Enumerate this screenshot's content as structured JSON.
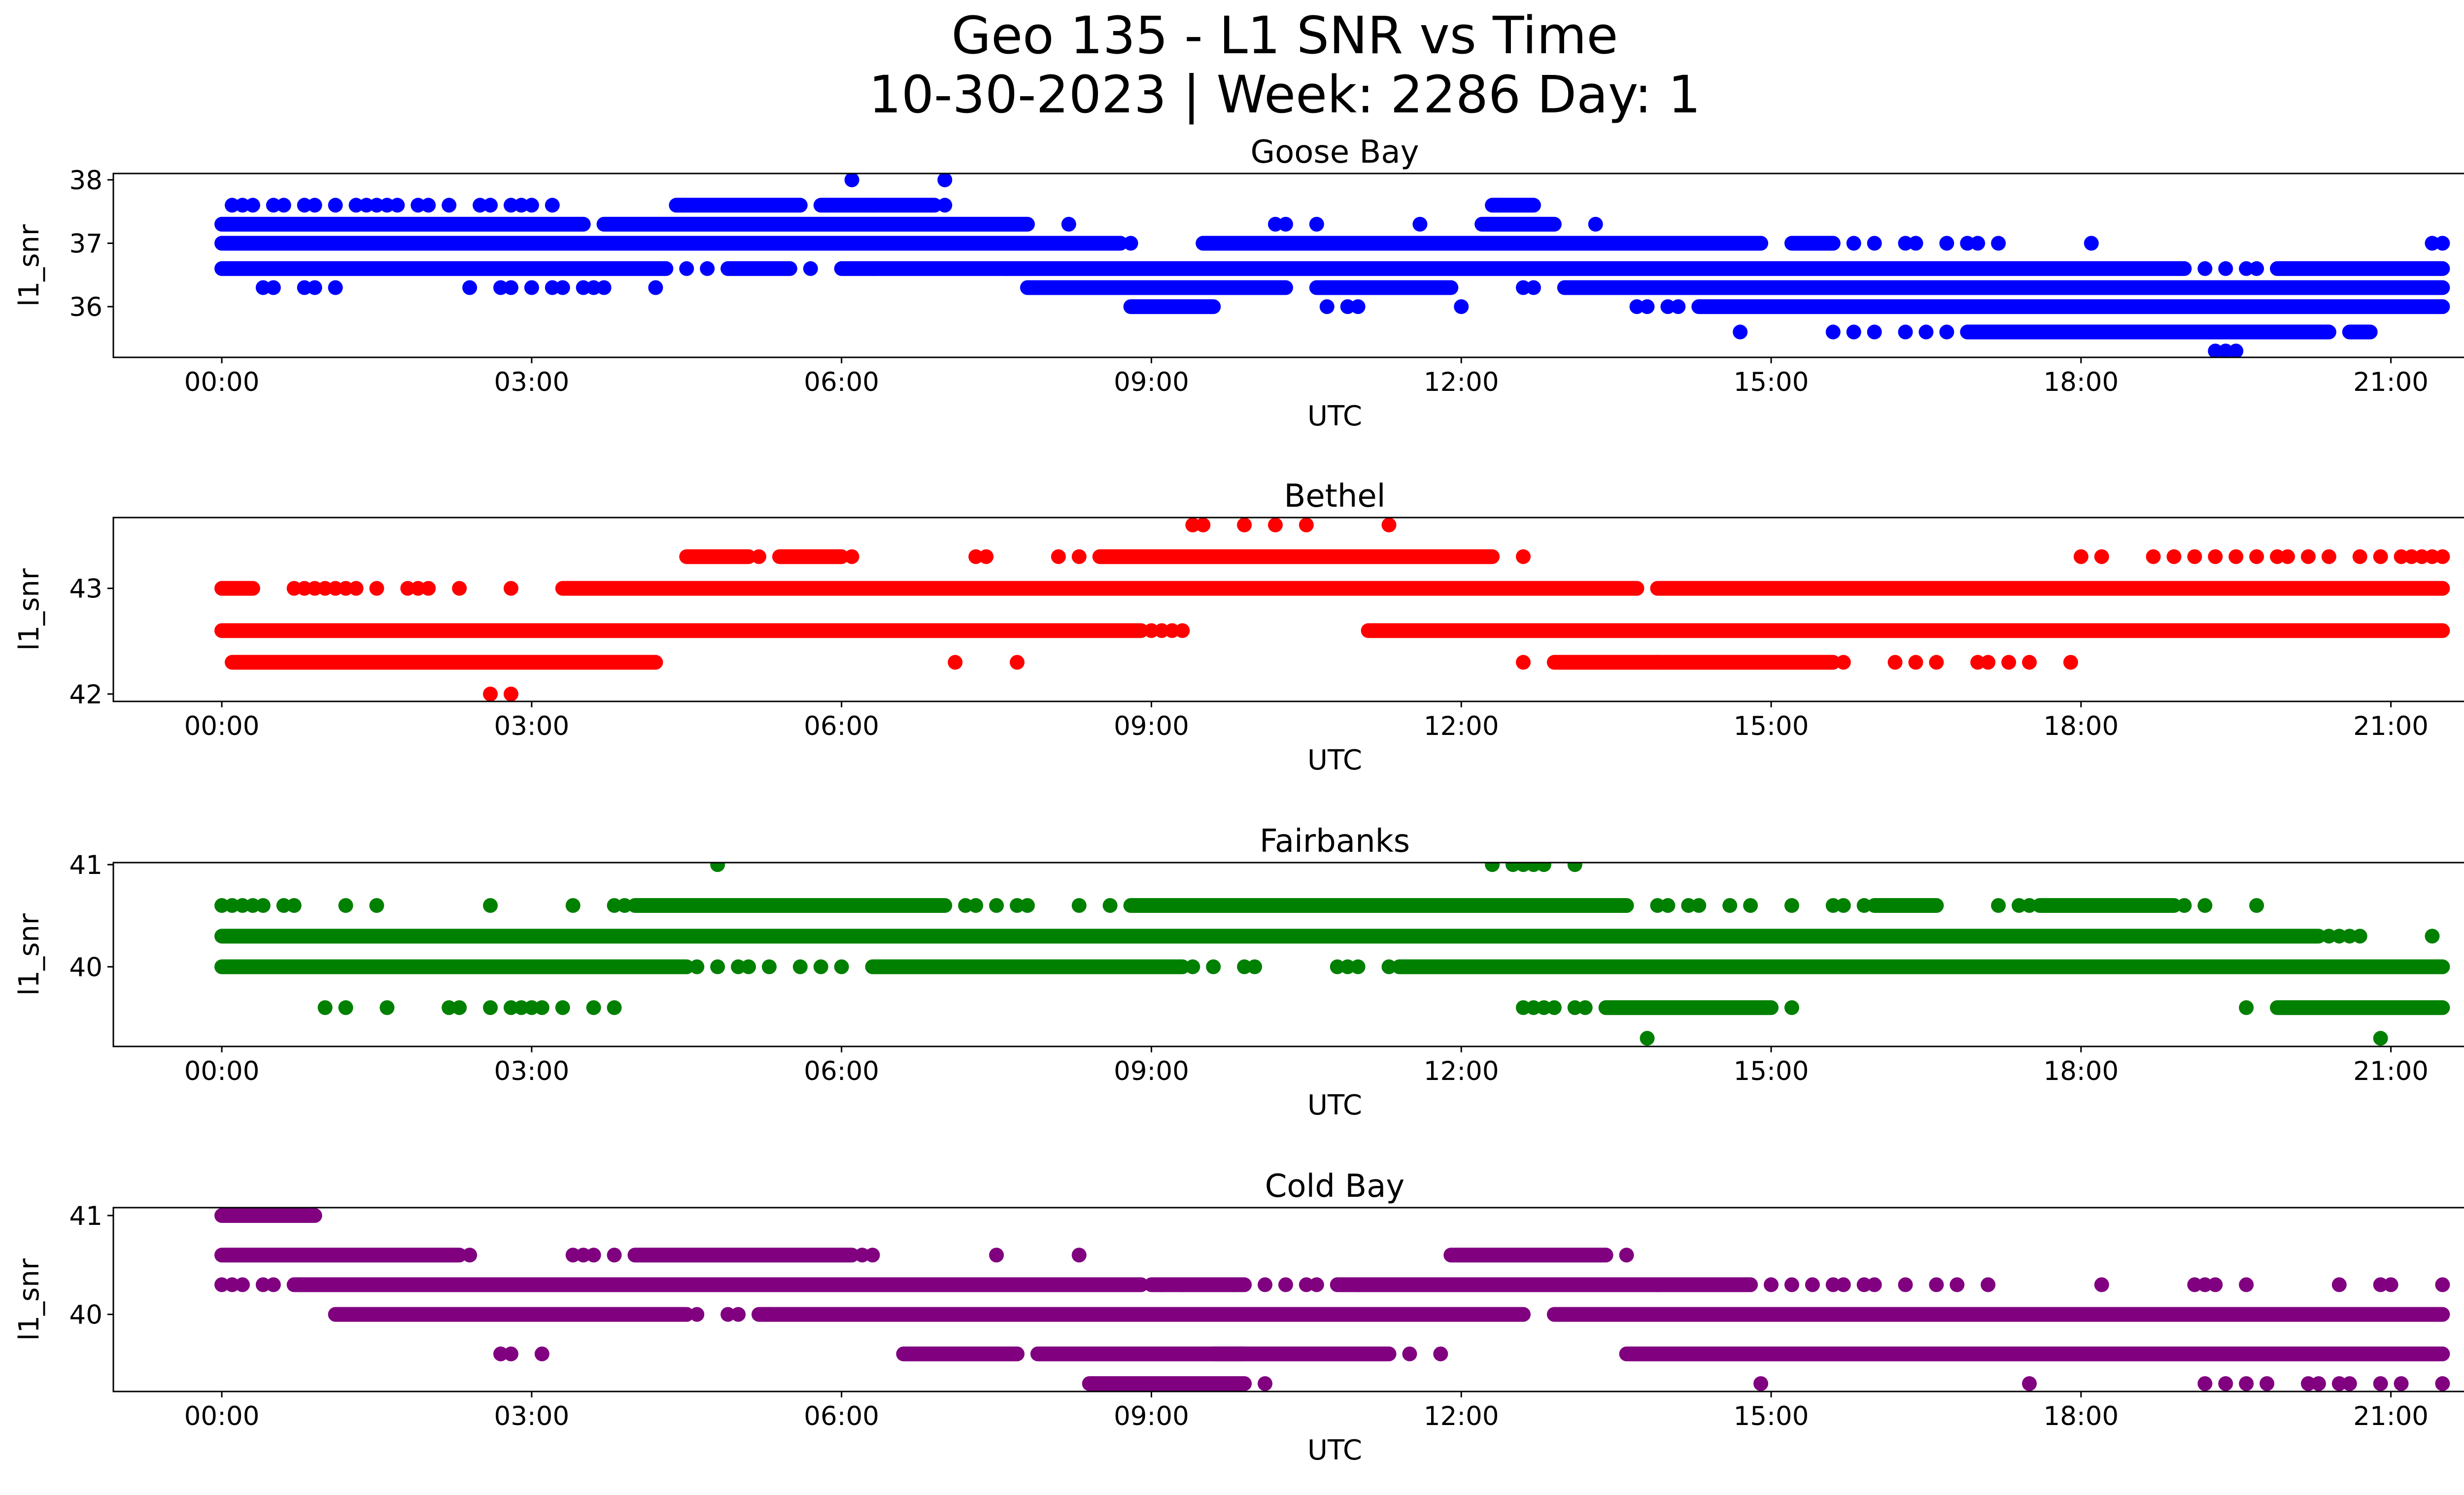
{
  "chart_data": {
    "title": "Geo 135 - L1 SNR vs Time",
    "subtitle": "10-30-2023 | Week: 2286 Day: 1",
    "x_tick_labels": [
      "00:00",
      "03:00",
      "06:00",
      "09:00",
      "12:00",
      "15:00",
      "18:00",
      "21:00"
    ],
    "xlabel": "UTC",
    "ylabel": "l1_snr",
    "charts": [
      {
        "type": "scatter",
        "title": "Goose Bay",
        "color": "#0000ff",
        "xlabel": "UTC",
        "ylabel": "l1_snr",
        "x_unit": "hours UTC",
        "xlim": [
          -1.05,
          22.6
        ],
        "ylim": [
          35.2,
          38.1
        ],
        "yticks": [
          36,
          37,
          38
        ],
        "levels": [
          {
            "y": 38.0,
            "segments": [],
            "points": [
              6.1,
              7.0
            ]
          },
          {
            "y": 37.6,
            "segments": [
              [
                4.4,
                5.6
              ],
              [
                5.8,
                6.9
              ],
              [
                12.3,
                12.7
              ]
            ],
            "points": [
              0.1,
              0.2,
              0.3,
              0.5,
              0.6,
              0.8,
              0.9,
              1.1,
              1.3,
              1.4,
              1.5,
              1.6,
              1.7,
              1.9,
              2.0,
              2.2,
              2.5,
              2.6,
              2.8,
              2.9,
              3.0,
              3.2,
              6.3,
              7.0
            ]
          },
          {
            "y": 37.3,
            "segments": [
              [
                0.0,
                3.5
              ],
              [
                3.7,
                7.8
              ],
              [
                12.2,
                12.9
              ]
            ],
            "points": [
              8.2,
              10.2,
              10.3,
              10.6,
              11.6,
              13.3
            ]
          },
          {
            "y": 37.0,
            "segments": [
              [
                0.0,
                8.7
              ],
              [
                9.5,
                14.9
              ],
              [
                15.2,
                15.6
              ]
            ],
            "points": [
              8.8,
              15.8,
              16.0,
              16.3,
              16.4,
              16.7,
              16.9,
              17.0,
              17.2,
              18.1,
              21.4,
              21.5
            ]
          },
          {
            "y": 36.6,
            "segments": [
              [
                0.0,
                4.3
              ],
              [
                4.9,
                5.5
              ],
              [
                6.0,
                7.6
              ],
              [
                7.6,
                19.0
              ],
              [
                19.9,
                21.5
              ]
            ],
            "points": [
              4.5,
              4.7,
              5.7,
              6.3,
              19.2,
              19.4,
              19.6,
              19.7
            ]
          },
          {
            "y": 36.3,
            "segments": [
              [
                7.8,
                10.3
              ],
              [
                10.6,
                11.9
              ],
              [
                13.0,
                21.5
              ]
            ],
            "points": [
              0.4,
              0.5,
              0.8,
              0.9,
              1.1,
              2.4,
              2.7,
              2.8,
              3.0,
              3.2,
              3.3,
              3.5,
              3.6,
              3.7,
              4.2,
              12.6,
              12.7
            ]
          },
          {
            "y": 36.0,
            "segments": [
              [
                8.8,
                9.6
              ],
              [
                14.3,
                21.5
              ]
            ],
            "points": [
              10.7,
              10.9,
              11.0,
              12.0,
              13.7,
              13.8,
              14.0,
              14.1
            ]
          },
          {
            "y": 35.6,
            "segments": [
              [
                16.9,
                20.4
              ],
              [
                20.6,
                20.8
              ]
            ],
            "points": [
              14.7,
              15.6,
              15.8,
              16.0,
              16.3,
              16.5,
              16.7
            ]
          },
          {
            "y": 35.3,
            "segments": [],
            "points": [
              19.3,
              19.4,
              19.5
            ]
          }
        ]
      },
      {
        "type": "scatter",
        "title": "Bethel",
        "color": "#ff0000",
        "xlabel": "UTC",
        "ylabel": "l1_snr",
        "x_unit": "hours UTC",
        "xlim": [
          -1.05,
          22.6
        ],
        "ylim": [
          41.93,
          43.67
        ],
        "yticks": [
          42,
          43
        ],
        "levels": [
          {
            "y": 43.6,
            "segments": [],
            "points": [
              9.4,
              9.5,
              9.9,
              10.2,
              10.5,
              11.3
            ]
          },
          {
            "y": 43.3,
            "segments": [
              [
                4.5,
                5.1
              ],
              [
                5.4,
                6.0
              ],
              [
                8.5,
                11.3
              ],
              [
                11.3,
                12.3
              ]
            ],
            "points": [
              5.2,
              6.1,
              7.3,
              7.4,
              8.1,
              8.3,
              12.6,
              18.0,
              18.2,
              18.7,
              18.9,
              19.1,
              19.3,
              19.5,
              19.7,
              19.9,
              20.0,
              20.2,
              20.4,
              20.7,
              20.9,
              21.1,
              21.2,
              21.3,
              21.4,
              21.5
            ]
          },
          {
            "y": 43.0,
            "segments": [
              [
                0.0,
                0.3
              ],
              [
                3.3,
                13.7
              ],
              [
                13.9,
                21.5
              ]
            ],
            "points": [
              0.7,
              0.8,
              0.9,
              1.0,
              1.1,
              1.2,
              1.3,
              1.5,
              1.8,
              1.9,
              2.0,
              2.3,
              2.8
            ]
          },
          {
            "y": 42.6,
            "segments": [
              [
                0.0,
                8.9
              ],
              [
                11.1,
                21.5
              ]
            ],
            "points": [
              9.0,
              9.1,
              9.2,
              9.3
            ]
          },
          {
            "y": 42.3,
            "segments": [
              [
                0.1,
                4.2
              ],
              [
                12.9,
                13.9
              ],
              [
                13.9,
                15.6
              ]
            ],
            "points": [
              7.1,
              7.7,
              12.6,
              15.7,
              16.2,
              16.4,
              16.6,
              17.0,
              17.1,
              17.3,
              17.5,
              17.9
            ]
          },
          {
            "y": 42.0,
            "segments": [],
            "points": [
              2.6,
              2.8
            ]
          }
        ]
      },
      {
        "type": "scatter",
        "title": "Fairbanks",
        "color": "#008000",
        "xlabel": "UTC",
        "ylabel": "l1_snr",
        "x_unit": "hours UTC",
        "xlim": [
          -1.05,
          22.6
        ],
        "ylim": [
          39.22,
          41.02
        ],
        "yticks": [
          40,
          41
        ],
        "levels": [
          {
            "y": 41.0,
            "segments": [],
            "points": [
              4.8,
              12.3,
              12.5,
              12.6,
              12.7,
              12.8,
              13.1
            ]
          },
          {
            "y": 40.6,
            "segments": [
              [
                4.0,
                7.0
              ],
              [
                8.8,
                13.6
              ],
              [
                16.0,
                16.6
              ],
              [
                17.6,
                18.9
              ]
            ],
            "points": [
              0.0,
              0.1,
              0.2,
              0.3,
              0.4,
              0.6,
              0.7,
              1.2,
              1.5,
              2.6,
              3.4,
              3.8,
              3.9,
              7.2,
              7.3,
              7.5,
              7.7,
              7.8,
              8.3,
              8.6,
              13.9,
              14.0,
              14.2,
              14.3,
              14.6,
              14.8,
              15.2,
              15.6,
              15.7,
              15.9,
              17.2,
              17.4,
              17.5,
              19.0,
              19.2,
              19.7
            ]
          },
          {
            "y": 40.3,
            "segments": [
              [
                0.0,
                20.3
              ]
            ],
            "points": [
              20.4,
              20.5,
              20.6,
              20.7,
              21.4
            ]
          },
          {
            "y": 40.0,
            "segments": [
              [
                0.0,
                4.5
              ],
              [
                6.3,
                9.3
              ],
              [
                11.4,
                21.5
              ]
            ],
            "points": [
              4.6,
              4.8,
              5.0,
              5.1,
              5.3,
              5.6,
              5.8,
              6.0,
              9.4,
              9.6,
              9.9,
              10.0,
              10.8,
              10.9,
              11.0,
              11.3
            ]
          },
          {
            "y": 39.6,
            "segments": [
              [
                13.4,
                15.0
              ],
              [
                19.9,
                21.5
              ]
            ],
            "points": [
              1.0,
              1.2,
              1.6,
              2.2,
              2.3,
              2.6,
              2.8,
              2.9,
              3.0,
              3.1,
              3.3,
              3.6,
              3.8,
              12.6,
              12.7,
              12.8,
              12.9,
              13.1,
              13.2,
              15.2,
              19.6
            ]
          },
          {
            "y": 39.3,
            "segments": [],
            "points": [
              13.8,
              20.9
            ]
          }
        ]
      },
      {
        "type": "scatter",
        "title": "Cold Bay",
        "color": "#800080",
        "xlabel": "UTC",
        "ylabel": "l1_snr",
        "x_unit": "hours UTC",
        "xlim": [
          -1.05,
          22.6
        ],
        "ylim": [
          39.22,
          41.08
        ],
        "yticks": [
          40,
          41
        ],
        "levels": [
          {
            "y": 41.0,
            "segments": [
              [
                0.0,
                0.9
              ]
            ],
            "points": []
          },
          {
            "y": 40.6,
            "segments": [
              [
                0.0,
                2.3
              ],
              [
                4.0,
                6.1
              ],
              [
                11.9,
                13.4
              ]
            ],
            "points": [
              2.4,
              3.4,
              3.5,
              3.6,
              3.8,
              6.2,
              6.3,
              7.5,
              8.3,
              13.6
            ]
          },
          {
            "y": 40.3,
            "segments": [
              [
                0.7,
                8.9
              ],
              [
                9.0,
                9.9
              ],
              [
                10.8,
                13.9
              ],
              [
                13.9,
                14.8
              ]
            ],
            "points": [
              0.0,
              0.1,
              0.2,
              0.4,
              0.5,
              9.1,
              9.3,
              9.8,
              10.1,
              10.3,
              10.5,
              10.6,
              11.0,
              15.0,
              15.2,
              15.4,
              15.6,
              15.7,
              15.9,
              16.0,
              16.3,
              16.6,
              16.8,
              17.1,
              18.2,
              19.1,
              19.2,
              19.3,
              19.6,
              20.5,
              20.9,
              21.0,
              21.5
            ]
          },
          {
            "y": 40.0,
            "segments": [
              [
                1.1,
                4.5
              ],
              [
                5.2,
                12.6
              ],
              [
                12.9,
                21.5
              ]
            ],
            "points": [
              4.6,
              4.9,
              5.0,
              5.3
            ]
          },
          {
            "y": 39.6,
            "segments": [
              [
                6.6,
                7.7
              ],
              [
                7.9,
                9.9
              ],
              [
                9.6,
                11.3
              ],
              [
                13.6,
                21.5
              ]
            ],
            "points": [
              2.7,
              2.8,
              3.1,
              11.5,
              11.8
            ]
          },
          {
            "y": 39.3,
            "segments": [
              [
                8.4,
                9.9
              ]
            ],
            "points": [
              10.1,
              14.9,
              17.5,
              19.2,
              19.4,
              19.6,
              19.8,
              20.2,
              20.3,
              20.5,
              20.6,
              20.9,
              21.1,
              21.5
            ]
          }
        ]
      }
    ]
  }
}
